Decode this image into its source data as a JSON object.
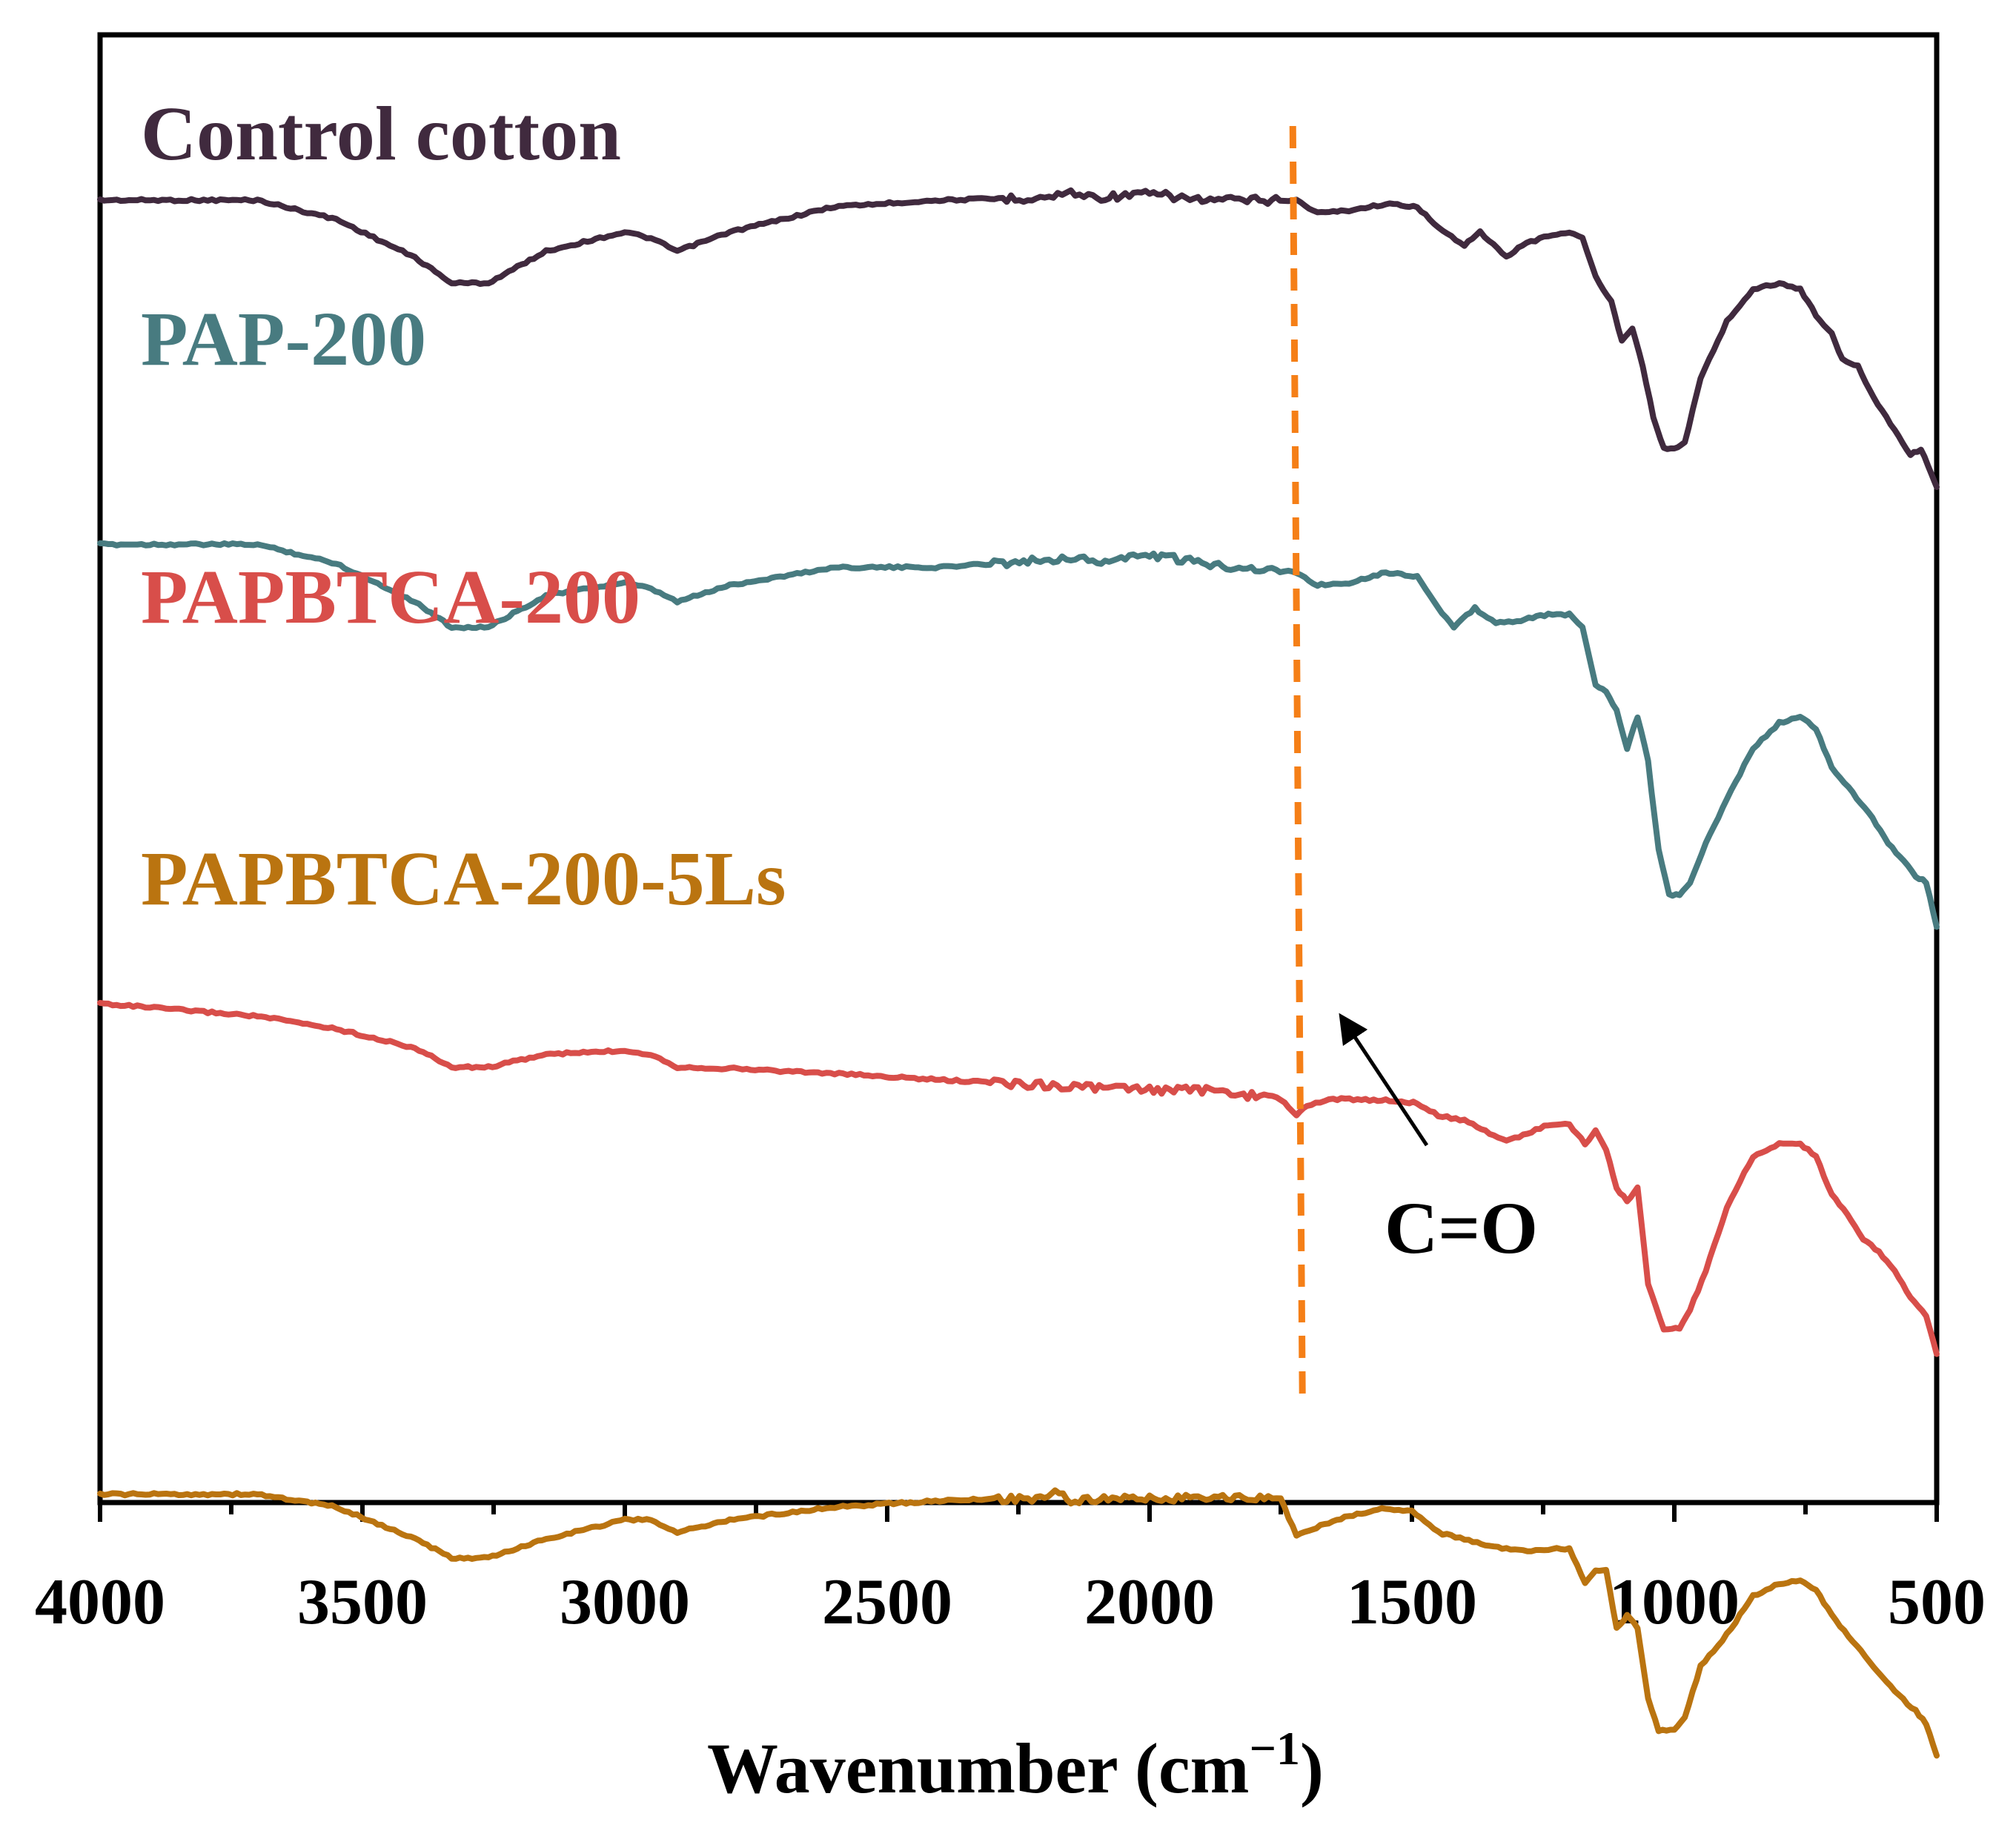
{
  "chart_data": {
    "type": "line",
    "xlabel": "Wavenumber (cm",
    "xlabel_sup": "−1",
    "xlabel_close": ")",
    "ylabel": "",
    "xlim": [
      4000,
      500
    ],
    "x_reversed": true,
    "xticks": [
      "4000",
      "3500",
      "3000",
      "2500",
      "2000",
      "1500",
      "1000",
      "500"
    ],
    "legend": "none",
    "grid": false,
    "y_units": "arbitrary (stacked transmittance, top curve at 10, downward dips = absorption)",
    "series": [
      {
        "name": "Control cotton",
        "color": "#402a3e",
        "points": [
          [
            4000,
            10.0
          ],
          [
            3700,
            10.0
          ],
          [
            3550,
            9.85
          ],
          [
            3400,
            9.55
          ],
          [
            3330,
            9.35
          ],
          [
            3260,
            9.35
          ],
          [
            3150,
            9.6
          ],
          [
            3000,
            9.75
          ],
          [
            2950,
            9.7
          ],
          [
            2900,
            9.6
          ],
          [
            2800,
            9.75
          ],
          [
            2600,
            9.95
          ],
          [
            2400,
            10.0
          ],
          [
            2200,
            10.02
          ],
          [
            2150,
            10.06
          ],
          [
            2100,
            10.02
          ],
          [
            2000,
            10.05
          ],
          [
            1900,
            10.0
          ],
          [
            1720,
            10.0
          ],
          [
            1680,
            9.9
          ],
          [
            1620,
            9.92
          ],
          [
            1550,
            9.97
          ],
          [
            1490,
            9.95
          ],
          [
            1450,
            9.78
          ],
          [
            1400,
            9.65
          ],
          [
            1370,
            9.75
          ],
          [
            1320,
            9.55
          ],
          [
            1290,
            9.65
          ],
          [
            1240,
            9.72
          ],
          [
            1200,
            9.75
          ],
          [
            1175,
            9.7
          ],
          [
            1150,
            9.4
          ],
          [
            1120,
            9.2
          ],
          [
            1100,
            8.9
          ],
          [
            1080,
            9.0
          ],
          [
            1060,
            8.7
          ],
          [
            1040,
            8.3
          ],
          [
            1020,
            8.05
          ],
          [
            1000,
            8.05
          ],
          [
            980,
            8.1
          ],
          [
            950,
            8.6
          ],
          [
            900,
            9.05
          ],
          [
            850,
            9.3
          ],
          [
            800,
            9.35
          ],
          [
            760,
            9.3
          ],
          [
            730,
            9.1
          ],
          [
            700,
            8.95
          ],
          [
            680,
            8.75
          ],
          [
            650,
            8.7
          ],
          [
            620,
            8.45
          ],
          [
            580,
            8.2
          ],
          [
            550,
            8.0
          ],
          [
            530,
            8.05
          ],
          [
            510,
            7.85
          ],
          [
            500,
            7.75
          ]
        ]
      },
      {
        "name": "PAP-200",
        "color": "#487b80",
        "points": [
          [
            4000,
            7.3
          ],
          [
            3700,
            7.3
          ],
          [
            3550,
            7.15
          ],
          [
            3400,
            6.85
          ],
          [
            3330,
            6.65
          ],
          [
            3260,
            6.65
          ],
          [
            3150,
            6.9
          ],
          [
            3000,
            7.0
          ],
          [
            2950,
            6.95
          ],
          [
            2900,
            6.85
          ],
          [
            2800,
            6.98
          ],
          [
            2600,
            7.12
          ],
          [
            2400,
            7.12
          ],
          [
            2200,
            7.18
          ],
          [
            2150,
            7.2
          ],
          [
            2100,
            7.16
          ],
          [
            2000,
            7.22
          ],
          [
            1900,
            7.15
          ],
          [
            1720,
            7.08
          ],
          [
            1680,
            6.98
          ],
          [
            1620,
            7.0
          ],
          [
            1550,
            7.08
          ],
          [
            1490,
            7.05
          ],
          [
            1450,
            6.8
          ],
          [
            1420,
            6.65
          ],
          [
            1380,
            6.8
          ],
          [
            1340,
            6.68
          ],
          [
            1300,
            6.7
          ],
          [
            1240,
            6.75
          ],
          [
            1200,
            6.75
          ],
          [
            1175,
            6.65
          ],
          [
            1150,
            6.2
          ],
          [
            1130,
            6.15
          ],
          [
            1110,
            6.0
          ],
          [
            1090,
            5.7
          ],
          [
            1070,
            5.95
          ],
          [
            1050,
            5.6
          ],
          [
            1030,
            4.9
          ],
          [
            1010,
            4.55
          ],
          [
            990,
            4.55
          ],
          [
            970,
            4.65
          ],
          [
            940,
            4.95
          ],
          [
            900,
            5.3
          ],
          [
            850,
            5.7
          ],
          [
            800,
            5.9
          ],
          [
            760,
            5.95
          ],
          [
            730,
            5.85
          ],
          [
            700,
            5.55
          ],
          [
            660,
            5.35
          ],
          [
            630,
            5.2
          ],
          [
            600,
            5.0
          ],
          [
            570,
            4.85
          ],
          [
            540,
            4.7
          ],
          [
            520,
            4.65
          ],
          [
            500,
            4.3
          ]
        ]
      },
      {
        "name": "PAPBTCA-200",
        "color": "#d84e4a",
        "points": [
          [
            4000,
            3.7
          ],
          [
            3700,
            3.6
          ],
          [
            3550,
            3.5
          ],
          [
            3400,
            3.35
          ],
          [
            3330,
            3.2
          ],
          [
            3260,
            3.2
          ],
          [
            3150,
            3.3
          ],
          [
            3000,
            3.33
          ],
          [
            2950,
            3.3
          ],
          [
            2900,
            3.2
          ],
          [
            2800,
            3.19
          ],
          [
            2600,
            3.15
          ],
          [
            2400,
            3.1
          ],
          [
            2200,
            3.06
          ],
          [
            2000,
            3.02
          ],
          [
            1900,
            3.02
          ],
          [
            1750,
            2.95
          ],
          [
            1720,
            2.82
          ],
          [
            1700,
            2.9
          ],
          [
            1650,
            2.95
          ],
          [
            1550,
            2.94
          ],
          [
            1490,
            2.92
          ],
          [
            1450,
            2.82
          ],
          [
            1400,
            2.78
          ],
          [
            1360,
            2.7
          ],
          [
            1320,
            2.62
          ],
          [
            1280,
            2.68
          ],
          [
            1240,
            2.75
          ],
          [
            1200,
            2.75
          ],
          [
            1170,
            2.6
          ],
          [
            1150,
            2.7
          ],
          [
            1130,
            2.55
          ],
          [
            1110,
            2.25
          ],
          [
            1090,
            2.15
          ],
          [
            1070,
            2.25
          ],
          [
            1050,
            1.5
          ],
          [
            1020,
            1.15
          ],
          [
            990,
            1.15
          ],
          [
            970,
            1.3
          ],
          [
            940,
            1.6
          ],
          [
            900,
            2.1
          ],
          [
            850,
            2.5
          ],
          [
            800,
            2.6
          ],
          [
            760,
            2.6
          ],
          [
            730,
            2.5
          ],
          [
            700,
            2.2
          ],
          [
            670,
            2.05
          ],
          [
            640,
            1.85
          ],
          [
            610,
            1.75
          ],
          [
            580,
            1.6
          ],
          [
            550,
            1.4
          ],
          [
            520,
            1.25
          ],
          [
            500,
            0.95
          ]
        ]
      },
      {
        "name": "PAPBTCA-200-5Ls",
        "color": "#ba7410",
        "points": [
          [
            4000,
            -0.15
          ],
          [
            3700,
            -0.15
          ],
          [
            3550,
            -0.25
          ],
          [
            3400,
            -0.5
          ],
          [
            3330,
            -0.65
          ],
          [
            3260,
            -0.65
          ],
          [
            3150,
            -0.5
          ],
          [
            3000,
            -0.35
          ],
          [
            2950,
            -0.35
          ],
          [
            2900,
            -0.45
          ],
          [
            2800,
            -0.35
          ],
          [
            2600,
            -0.25
          ],
          [
            2400,
            -0.2
          ],
          [
            2200,
            -0.18
          ],
          [
            2180,
            -0.1
          ],
          [
            2150,
            -0.2
          ],
          [
            2000,
            -0.18
          ],
          [
            1900,
            -0.18
          ],
          [
            1750,
            -0.18
          ],
          [
            1720,
            -0.48
          ],
          [
            1690,
            -0.42
          ],
          [
            1620,
            -0.32
          ],
          [
            1550,
            -0.26
          ],
          [
            1500,
            -0.28
          ],
          [
            1450,
            -0.45
          ],
          [
            1400,
            -0.5
          ],
          [
            1360,
            -0.55
          ],
          [
            1320,
            -0.58
          ],
          [
            1280,
            -0.6
          ],
          [
            1240,
            -0.58
          ],
          [
            1200,
            -0.58
          ],
          [
            1170,
            -0.85
          ],
          [
            1150,
            -0.75
          ],
          [
            1130,
            -0.75
          ],
          [
            1110,
            -1.2
          ],
          [
            1090,
            -1.1
          ],
          [
            1070,
            -1.2
          ],
          [
            1050,
            -1.75
          ],
          [
            1030,
            -2.0
          ],
          [
            1000,
            -2.0
          ],
          [
            980,
            -1.9
          ],
          [
            950,
            -1.5
          ],
          [
            900,
            -1.25
          ],
          [
            850,
            -0.95
          ],
          [
            800,
            -0.85
          ],
          [
            760,
            -0.82
          ],
          [
            730,
            -0.9
          ],
          [
            700,
            -1.1
          ],
          [
            660,
            -1.3
          ],
          [
            620,
            -1.5
          ],
          [
            580,
            -1.7
          ],
          [
            540,
            -1.85
          ],
          [
            520,
            -1.95
          ],
          [
            500,
            -2.2
          ]
        ]
      }
    ],
    "annotations": [
      {
        "text": "C=O",
        "x": 1720,
        "type": "vertical-dashed-line-with-arrow",
        "color": "#f57f17"
      }
    ]
  }
}
